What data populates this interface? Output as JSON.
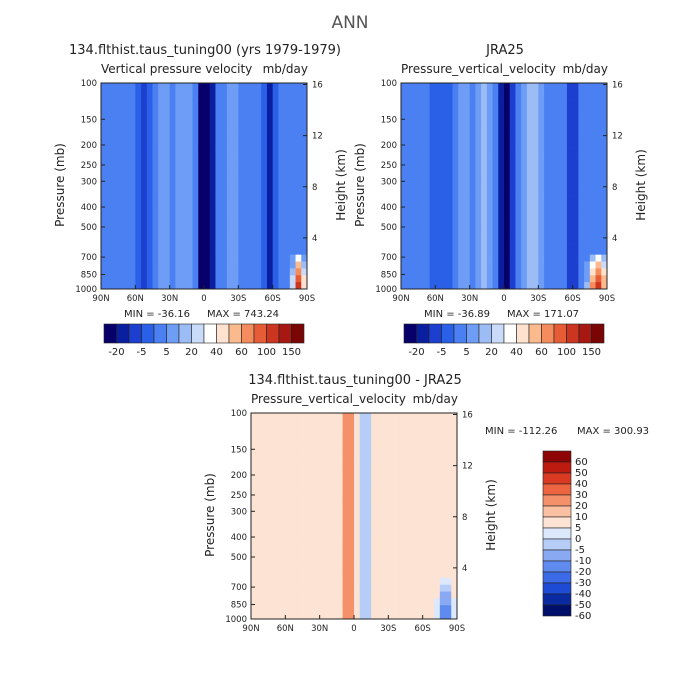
{
  "suptitle": "ANN",
  "palette": {
    "full": [
      "#08006a",
      "#0a1fa0",
      "#1c3fd0",
      "#2a60e8",
      "#4a80f2",
      "#6e9df6",
      "#9cbcf6",
      "#c9dbf9",
      "#ffffff",
      "#fde2cf",
      "#fbb98e",
      "#f48c5e",
      "#e65c36",
      "#cc3520",
      "#a81812",
      "#7a0505"
    ],
    "diff": [
      "#00106a",
      "#0a2aa2",
      "#1e4bd6",
      "#3a6ae6",
      "#5f8af0",
      "#8aa9f3",
      "#b6cdf8",
      "#dce8fc",
      "#fde3d3",
      "#fbbfa1",
      "#f5916a",
      "#ec6440",
      "#db3a22",
      "#bd1a10",
      "#8e0505"
    ]
  },
  "chart_data": [
    {
      "type": "heatmap",
      "title": "134.flthist.taus_tuning00 (yrs 1979-1979)",
      "subtitle_left": "Vertical pressure velocity",
      "subtitle_right": "mb/day",
      "xlabel": "",
      "ylabel": "Pressure (mb)",
      "ylabel_right": "Height (km)",
      "x_ticks": [
        "90N",
        "60N",
        "30N",
        "0",
        "30S",
        "60S",
        "90S"
      ],
      "y_ticks": [
        "100",
        "150",
        "200",
        "250",
        "300",
        "400",
        "500",
        "700",
        "850",
        "1000"
      ],
      "y_ticks_right": [
        "16",
        "12",
        "8",
        "4"
      ],
      "ylim": [
        1000,
        100
      ],
      "min_label": "MIN = -36.16",
      "max_label": "MAX = 743.24",
      "min": -36.16,
      "max": 743.24,
      "colorbar_levels": [
        "-20",
        "-5",
        "5",
        "20",
        "40",
        "60",
        "100",
        "150"
      ],
      "features": [
        {
          "lat": -2,
          "width": 6,
          "value": -34
        },
        {
          "lat": 18,
          "width": 6,
          "value": 6
        },
        {
          "lat": 35,
          "width": 6,
          "value": 5
        },
        {
          "lat": 52,
          "width": 7,
          "value": -12
        },
        {
          "lat": -25,
          "width": 7,
          "value": 5
        },
        {
          "lat": -58,
          "width": 5,
          "value": -14
        },
        {
          "lat": -83,
          "width": 4,
          "value": 120
        }
      ]
    },
    {
      "type": "heatmap",
      "title": "JRA25",
      "subtitle_left": "Pressure_vertical_velocity",
      "subtitle_right": "mb/day",
      "xlabel": "",
      "ylabel": "Pressure (mb)",
      "ylabel_right": "Height (km)",
      "x_ticks": [
        "90N",
        "60N",
        "30N",
        "0",
        "30S",
        "60S",
        "90S"
      ],
      "y_ticks": [
        "100",
        "150",
        "200",
        "250",
        "300",
        "400",
        "500",
        "700",
        "850",
        "1000"
      ],
      "y_ticks_right": [
        "16",
        "12",
        "8",
        "4"
      ],
      "ylim": [
        1000,
        100
      ],
      "min_label": "MIN = -36.89",
      "max_label": "MAX = 171.07",
      "min": -36.89,
      "max": 171.07,
      "colorbar_levels": [
        "-20",
        "-5",
        "5",
        "20",
        "40",
        "60",
        "100",
        "150"
      ],
      "features": [
        {
          "lat": -2,
          "width": 5,
          "value": -35
        },
        {
          "lat": 16,
          "width": 7,
          "value": 8
        },
        {
          "lat": 36,
          "width": 6,
          "value": 6
        },
        {
          "lat": 55,
          "width": 8,
          "value": -8
        },
        {
          "lat": -25,
          "width": 8,
          "value": 8
        },
        {
          "lat": -60,
          "width": 6,
          "value": -12
        },
        {
          "lat": -82,
          "width": 6,
          "value": 110
        }
      ]
    },
    {
      "type": "heatmap",
      "title": "134.flthist.taus_tuning00 - JRA25",
      "subtitle_left": "Pressure_vertical_velocity",
      "subtitle_right": "mb/day",
      "xlabel": "",
      "ylabel": "Pressure (mb)",
      "ylabel_right": "Height (km)",
      "x_ticks": [
        "90N",
        "60N",
        "30N",
        "0",
        "30S",
        "60S",
        "90S"
      ],
      "y_ticks": [
        "100",
        "150",
        "200",
        "250",
        "300",
        "400",
        "500",
        "700",
        "850",
        "1000"
      ],
      "y_ticks_right": [
        "16",
        "12",
        "8",
        "4"
      ],
      "ylim": [
        1000,
        100
      ],
      "min_label": "MIN = -112.26",
      "max_label": "MAX = 300.93",
      "min": -112.26,
      "max": 300.93,
      "colorbar_levels": [
        "60",
        "50",
        "40",
        "30",
        "20",
        "10",
        "5",
        "0",
        "-5",
        "-10",
        "-20",
        "-30",
        "-40",
        "-50",
        "-60"
      ],
      "features": [
        {
          "lat": 6,
          "width": 4,
          "value": 22
        },
        {
          "lat": -10,
          "width": 3,
          "value": -14
        },
        {
          "lat": 28,
          "width": 4,
          "value": 4
        },
        {
          "lat": -55,
          "width": 4,
          "value": 6
        },
        {
          "lat": -80,
          "width": 4,
          "value": -50
        }
      ]
    }
  ]
}
